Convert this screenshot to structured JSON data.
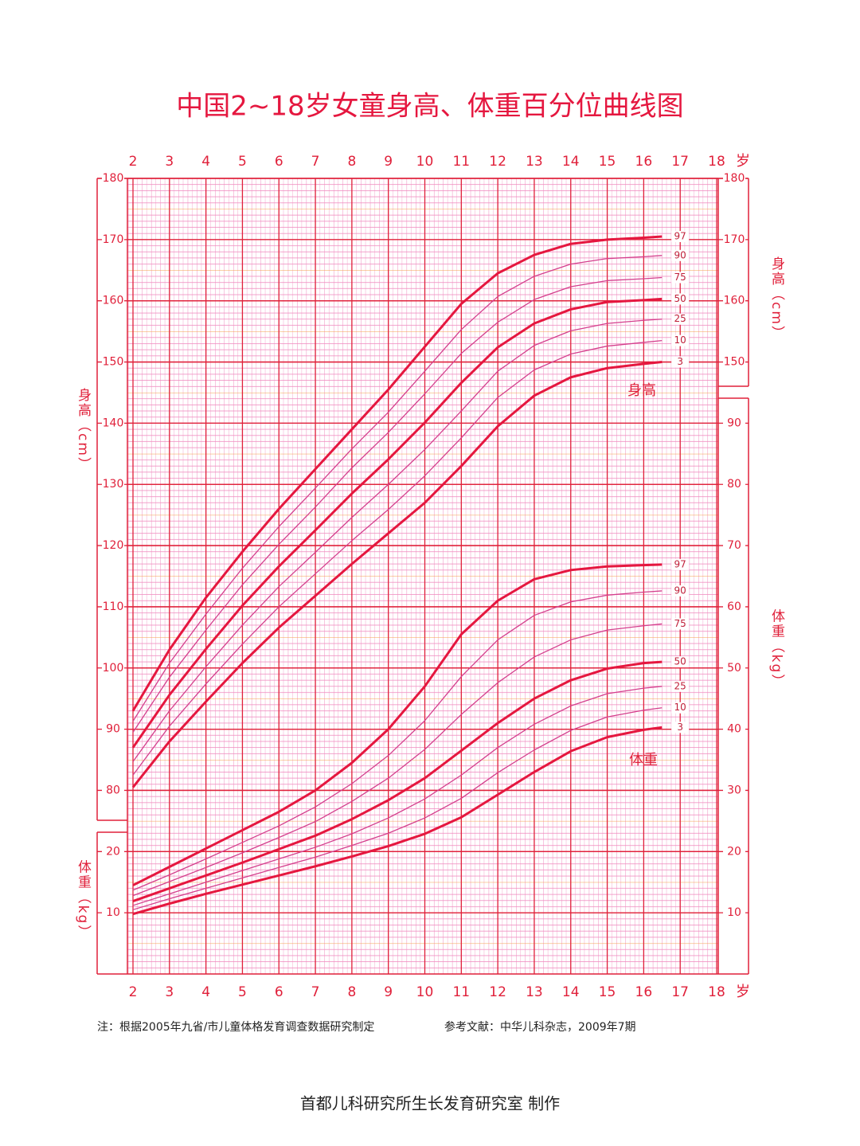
{
  "chart_data": {
    "type": "line",
    "title": "中国2~18岁女童身高、体重百分位曲线图",
    "x_unit": "岁",
    "xlim": [
      2,
      18
    ],
    "xticks": [
      2,
      3,
      4,
      5,
      6,
      7,
      8,
      9,
      10,
      11,
      12,
      13,
      14,
      15,
      16,
      17,
      18
    ],
    "ylim": [
      50,
      180
    ],
    "yticks": [
      80,
      90,
      100,
      110,
      120,
      130,
      140,
      150,
      160,
      170,
      180
    ],
    "yticks_right": [
      150,
      160,
      170,
      180
    ],
    "y_label": "身高（cm）",
    "y2lim": [
      0,
      130
    ],
    "y2ticks_left": [
      10,
      20
    ],
    "y2ticks": [
      10,
      20,
      30,
      40,
      50,
      60,
      70,
      80,
      90
    ],
    "y2_label": "体重（kg）",
    "height_curve_label": "身高",
    "weight_curve_label": "体重",
    "x": [
      2,
      3,
      4,
      5,
      6,
      7,
      8,
      9,
      10,
      11,
      12,
      13,
      14,
      15,
      16,
      16.5
    ],
    "series": [
      {
        "name": "97",
        "color": "#e5173f",
        "width": 3,
        "values": [
          93.0,
          103.0,
          111.5,
          119.0,
          126.0,
          132.5,
          139.0,
          145.5,
          152.5,
          159.5,
          164.5,
          167.5,
          169.3,
          170.0,
          170.3,
          170.5
        ]
      },
      {
        "name": "90",
        "color": "#d43f8d",
        "width": 1.3,
        "values": [
          91.3,
          100.8,
          108.8,
          116.3,
          123.1,
          129.4,
          135.8,
          141.8,
          148.5,
          155.3,
          160.7,
          164.0,
          166.0,
          166.9,
          167.2,
          167.4
        ]
      },
      {
        "name": "75",
        "color": "#d43f8d",
        "width": 1.3,
        "values": [
          89.5,
          98.5,
          106.2,
          113.6,
          120.2,
          126.3,
          132.7,
          138.5,
          144.8,
          151.4,
          156.5,
          160.2,
          162.3,
          163.3,
          163.6,
          163.8
        ]
      },
      {
        "name": "50",
        "color": "#e5173f",
        "width": 3,
        "values": [
          87.0,
          95.6,
          103.1,
          110.2,
          116.6,
          122.5,
          128.5,
          134.1,
          140.1,
          146.6,
          152.4,
          156.3,
          158.6,
          159.8,
          160.1,
          160.3
        ]
      },
      {
        "name": "25",
        "color": "#d43f8d",
        "width": 1.3,
        "values": [
          84.7,
          93.0,
          100.2,
          107.0,
          113.3,
          118.9,
          124.6,
          130.0,
          135.7,
          142.0,
          148.5,
          152.7,
          155.1,
          156.3,
          156.8,
          157.0
        ]
      },
      {
        "name": "10",
        "color": "#d43f8d",
        "width": 1.3,
        "values": [
          82.5,
          90.5,
          97.4,
          103.9,
          110.0,
          115.4,
          120.8,
          125.9,
          131.4,
          137.6,
          144.2,
          148.7,
          151.3,
          152.6,
          153.2,
          153.5
        ]
      },
      {
        "name": "3",
        "color": "#e5173f",
        "width": 3,
        "values": [
          80.5,
          88.0,
          94.5,
          100.8,
          106.6,
          111.8,
          117.0,
          122.0,
          127.0,
          133.0,
          139.5,
          144.5,
          147.5,
          149.0,
          149.7,
          150.0
        ]
      },
      {
        "name": "97",
        "axis": "y2",
        "color": "#e5173f",
        "width": 3,
        "values": [
          14.5,
          17.5,
          20.5,
          23.5,
          26.5,
          30.0,
          34.5,
          40.0,
          47.0,
          55.5,
          61.0,
          64.5,
          66.0,
          66.6,
          66.8,
          66.9
        ]
      },
      {
        "name": "90",
        "axis": "y2",
        "color": "#d43f8d",
        "width": 1.3,
        "values": [
          13.7,
          16.2,
          18.8,
          21.5,
          24.2,
          27.3,
          31.1,
          35.7,
          41.4,
          48.6,
          54.6,
          58.6,
          60.8,
          61.9,
          62.4,
          62.6
        ]
      },
      {
        "name": "75",
        "axis": "y2",
        "color": "#d43f8d",
        "width": 1.3,
        "values": [
          12.8,
          15.1,
          17.4,
          19.8,
          22.3,
          24.9,
          28.2,
          32.0,
          36.7,
          42.4,
          47.6,
          51.8,
          54.6,
          56.2,
          56.9,
          57.2
        ]
      },
      {
        "name": "50",
        "axis": "y2",
        "color": "#e5173f",
        "width": 3,
        "values": [
          11.9,
          14.0,
          16.1,
          18.2,
          20.4,
          22.6,
          25.3,
          28.4,
          32.0,
          36.5,
          41.0,
          45.0,
          48.0,
          49.9,
          50.8,
          51.0
        ]
      },
      {
        "name": "25",
        "axis": "y2",
        "color": "#d43f8d",
        "width": 1.3,
        "values": [
          11.2,
          13.1,
          15.0,
          16.9,
          18.8,
          20.7,
          22.9,
          25.5,
          28.6,
          32.5,
          37.0,
          40.8,
          43.8,
          45.8,
          46.7,
          47.0
        ]
      },
      {
        "name": "10",
        "axis": "y2",
        "color": "#d43f8d",
        "width": 1.3,
        "values": [
          10.5,
          12.3,
          14.0,
          15.7,
          17.4,
          19.1,
          21.0,
          23.0,
          25.5,
          28.7,
          32.9,
          36.6,
          39.8,
          42.0,
          43.1,
          43.5
        ]
      },
      {
        "name": "3",
        "axis": "y2",
        "color": "#e5173f",
        "width": 3,
        "values": [
          9.8,
          11.5,
          13.1,
          14.6,
          16.1,
          17.6,
          19.2,
          20.9,
          22.9,
          25.6,
          29.3,
          33.0,
          36.4,
          38.7,
          39.9,
          40.3
        ]
      }
    ],
    "notes": [
      "注：根据2005年九省/市儿童体格发育调查数据研究制定",
      "参考文献：中华儿科杂志，2009年7期"
    ],
    "credit": "首都儿科研究所生长发育研究室 制作"
  }
}
